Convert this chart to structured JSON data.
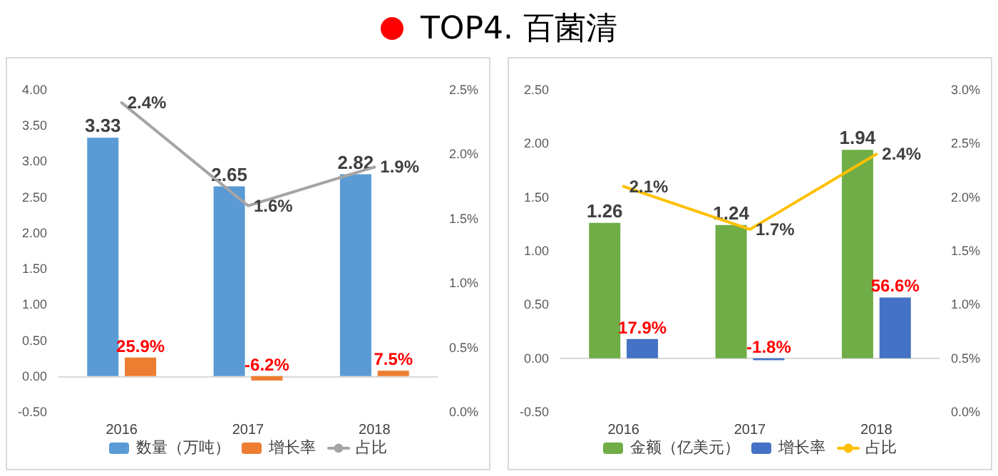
{
  "chart_data": [
    {
      "type": "bar",
      "title": "TOP4. 百菌清",
      "categories": [
        "2016",
        "2017",
        "2018"
      ],
      "series": [
        {
          "name": "数量（万吨）",
          "color": "#5b9bd5",
          "values": [
            3.33,
            2.65,
            2.82
          ],
          "value_labels": [
            "3.33",
            "2.65",
            "2.82"
          ]
        },
        {
          "name": "增长率",
          "color": "#ed7d31",
          "values": [
            0.259,
            -0.062,
            0.075
          ],
          "value_labels": [
            "25.9%",
            "-6.2%",
            "7.5%"
          ]
        },
        {
          "name": "占比",
          "type": "line",
          "axis": "y2",
          "color": "#a5a5a5",
          "values": [
            2.4,
            1.6,
            1.9
          ],
          "value_labels": [
            "2.4%",
            "1.6%",
            "1.9%"
          ]
        }
      ],
      "ylim": [
        -0.5,
        4
      ],
      "yticks": [
        {
          "value": -0.5,
          "label": "-0.50"
        },
        {
          "value": 0,
          "label": "0.00"
        },
        {
          "value": 0.5,
          "label": "0.50"
        },
        {
          "value": 1,
          "label": "1.00"
        },
        {
          "value": 1.5,
          "label": "1.50"
        },
        {
          "value": 2,
          "label": "2.00"
        },
        {
          "value": 2.5,
          "label": "2.50"
        },
        {
          "value": 3,
          "label": "3.00"
        },
        {
          "value": 3.5,
          "label": "3.50"
        },
        {
          "value": 4,
          "label": "4.00"
        }
      ],
      "y2lim": [
        0,
        2.5
      ],
      "y2ticks": [
        {
          "value": 0,
          "label": "0.0%"
        },
        {
          "value": 0.5,
          "label": "0.5%"
        },
        {
          "value": 1,
          "label": "1.0%"
        },
        {
          "value": 1.5,
          "label": "1.5%"
        },
        {
          "value": 2,
          "label": "2.0%"
        },
        {
          "value": 2.5,
          "label": "2.5%"
        }
      ],
      "legend": "bottom",
      "marker": "none"
    },
    {
      "type": "bar",
      "categories": [
        "2016",
        "2017",
        "2018"
      ],
      "series": [
        {
          "name": "金额（亿美元）",
          "color": "#70ad47",
          "values": [
            1.26,
            1.24,
            1.94
          ],
          "value_labels": [
            "1.26",
            "1.24",
            "1.94"
          ]
        },
        {
          "name": "增长率",
          "color": "#4472c4",
          "values": [
            0.179,
            -0.018,
            0.566
          ],
          "value_labels": [
            "17.9%",
            "-1.8%",
            "56.6%"
          ]
        },
        {
          "name": "占比",
          "type": "line",
          "axis": "y2",
          "color": "#ffc000",
          "values": [
            2.1,
            1.7,
            2.4
          ],
          "value_labels": [
            "2.1%",
            "1.7%",
            "2.4%"
          ]
        }
      ],
      "ylim": [
        -0.5,
        2.5
      ],
      "yticks": [
        {
          "value": -0.5,
          "label": "-0.50"
        },
        {
          "value": 0,
          "label": "0.00"
        },
        {
          "value": 0.5,
          "label": "0.50"
        },
        {
          "value": 1,
          "label": "1.00"
        },
        {
          "value": 1.5,
          "label": "1.50"
        },
        {
          "value": 2,
          "label": "2.00"
        },
        {
          "value": 2.5,
          "label": "2.50"
        }
      ],
      "y2lim": [
        0,
        3
      ],
      "y2ticks": [
        {
          "value": 0,
          "label": "0.0%"
        },
        {
          "value": 0.5,
          "label": "0.5%"
        },
        {
          "value": 1,
          "label": "1.0%"
        },
        {
          "value": 1.5,
          "label": "1.5%"
        },
        {
          "value": 2,
          "label": "2.0%"
        },
        {
          "value": 2.5,
          "label": "2.5%"
        },
        {
          "value": 3,
          "label": "3.0%"
        }
      ],
      "legend": "bottom",
      "marker": "none"
    }
  ]
}
